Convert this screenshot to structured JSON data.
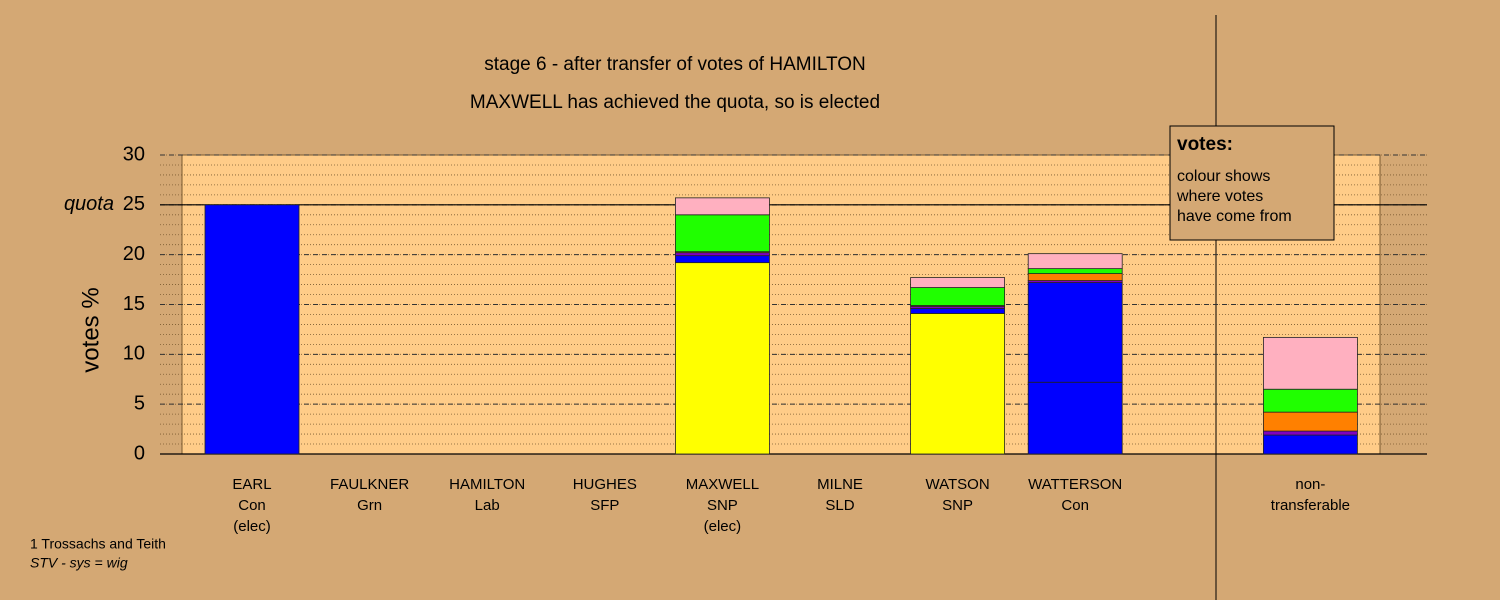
{
  "chart_data": {
    "type": "stacked-bar",
    "title": "stage 6 - after transfer of votes of HAMILTON",
    "subtitle": "MAXWELL has achieved the quota, so is elected",
    "ylabel": "votes %",
    "categories": [
      [
        "EARL",
        "Con",
        "(elec)"
      ],
      [
        "FAULKNER",
        "Grn"
      ],
      [
        "HAMILTON",
        "Lab"
      ],
      [
        "HUGHES",
        "SFP"
      ],
      [
        "MAXWELL",
        "SNP",
        "(elec)"
      ],
      [
        "MILNE",
        "SLD"
      ],
      [
        "WATSON",
        "SNP"
      ],
      [
        "WATTERSON",
        "Con"
      ],
      null,
      [
        "non-",
        "transferable"
      ]
    ],
    "series": [
      {
        "color": "#ffff00",
        "values": [
          0,
          0,
          0,
          0,
          19.2,
          0,
          14.1,
          0,
          null,
          0
        ]
      },
      {
        "color": "#0000ff",
        "values": [
          25,
          0,
          0,
          0,
          0,
          0,
          0,
          7.2,
          null,
          0
        ]
      },
      {
        "color": "#0000ff",
        "values": [
          0,
          0,
          0,
          0,
          0.7,
          0,
          0.5,
          10.0,
          null,
          1.9
        ]
      },
      {
        "color": "#8000c0",
        "values": [
          0,
          0,
          0,
          0,
          0.3,
          0,
          0.2,
          0.2,
          null,
          0.4
        ]
      },
      {
        "color": "#ff8000",
        "values": [
          0,
          0,
          0,
          0,
          0.1,
          0,
          0.1,
          0.7,
          null,
          1.9
        ]
      },
      {
        "color": "#20ff00",
        "values": [
          0,
          0,
          0,
          0,
          3.7,
          0,
          1.8,
          0.5,
          null,
          2.3
        ]
      },
      {
        "color": "#ffb0c0",
        "values": [
          0,
          0,
          0,
          0,
          1.7,
          0,
          1.0,
          1.5,
          null,
          5.2
        ]
      }
    ],
    "ylim": [
      0,
      30
    ],
    "yticks": [
      0,
      5,
      10,
      15,
      20,
      25,
      30
    ],
    "grid": true,
    "quota": 25,
    "quota_label": "quota",
    "legend": {
      "title": "votes:",
      "lines": [
        "colour shows",
        "where votes",
        "have come from"
      ]
    },
    "footnotes": [
      "1 Trossachs and Teith",
      "STV - sys = wig"
    ]
  }
}
